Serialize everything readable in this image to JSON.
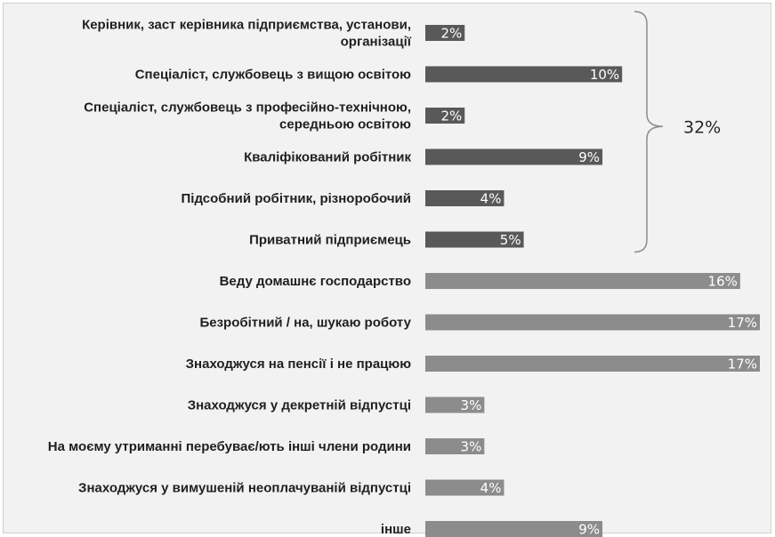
{
  "chart_data": {
    "type": "bar",
    "orientation": "horizontal",
    "categories": [
      [
        "Керівник, заст керівника підприємства, установи,",
        "організації"
      ],
      [
        "Спеціаліст, службовець з вищою освітою"
      ],
      [
        "Спеціаліст, службовець з професійно-технічною,",
        "середньою освітою"
      ],
      [
        "Кваліфікований робітник"
      ],
      [
        "Підсобний робітник, різноробочий"
      ],
      [
        "Приватний підприємець"
      ],
      [
        "Веду домашнє господарство"
      ],
      [
        "Безробітний / на, шукаю роботу"
      ],
      [
        "Знаходжуся на пенсії і не працюю"
      ],
      [
        "Знаходжуся у декретній відпустці"
      ],
      [
        "На моєму утриманні перебуває/ють інші члени родини"
      ],
      [
        "Знаходжуся у вимушеній неоплачуваній відпустці"
      ],
      [
        "інше"
      ]
    ],
    "values": [
      2,
      10,
      2,
      9,
      4,
      5,
      16,
      17,
      17,
      3,
      3,
      4,
      9
    ],
    "value_labels": [
      "2%",
      "10%",
      "2%",
      "9%",
      "4%",
      "5%",
      "16%",
      "17%",
      "17%",
      "3%",
      "3%",
      "4%",
      "9%"
    ],
    "group": [
      "employed",
      "employed",
      "employed",
      "employed",
      "employed",
      "employed",
      "other",
      "other",
      "other",
      "other",
      "other",
      "other",
      "other"
    ],
    "group_colors": {
      "employed": "#595959",
      "other": "#8c8c8c"
    },
    "bracket": {
      "label": "32%",
      "from_index": 0,
      "to_index": 5
    },
    "xlim": [
      0,
      17
    ],
    "grid": false,
    "legend": "none"
  }
}
